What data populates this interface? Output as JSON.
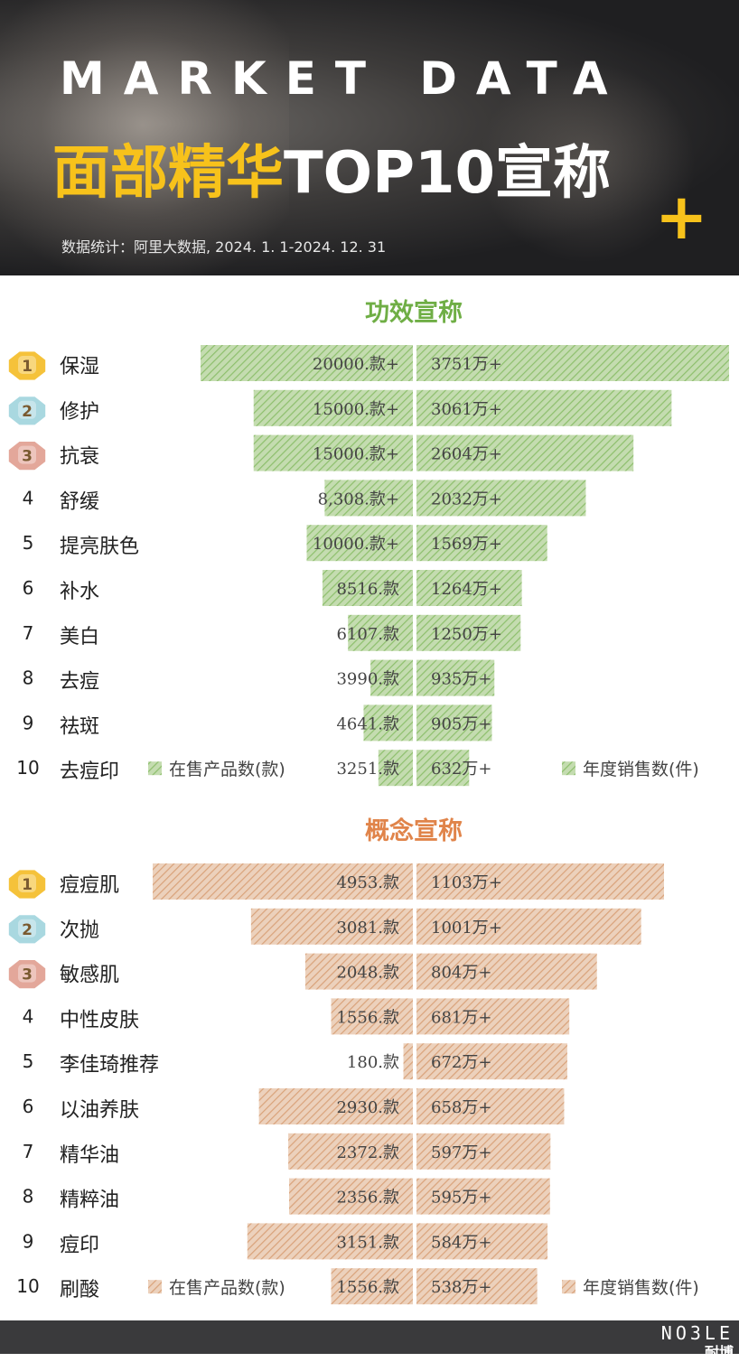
{
  "header": {
    "eyebrow": "MARKET DATA",
    "title_highlight": "面部精华",
    "title_rest": "TOP10宣称",
    "subtitle": "数据统计：阿里大数据, 2024. 1. 1-2024. 12. 31",
    "plus": "+"
  },
  "footer": {
    "logo": "NO3LE",
    "logo_cn": "耐博"
  },
  "colors": {
    "green": "#8dbf6c",
    "green_light": "#c4dcb0",
    "orange": "#d9a27a",
    "orange_light": "#ecd1bc",
    "gold_medal": "#f5c23a",
    "silver_medal": "#a9d8e0",
    "bronze_medal": "#e3a79a",
    "header_highlight": "#f7c21b"
  },
  "chart_data": [
    {
      "type": "bar",
      "title": "功效宣称",
      "categories": [
        "保湿",
        "修护",
        "抗衰",
        "舒缓",
        "提亮肤色",
        "补水",
        "美白",
        "去痘",
        "祛斑",
        "去痘印"
      ],
      "ranks": [
        "1",
        "2",
        "3",
        "4",
        "5",
        "6",
        "7",
        "8",
        "9",
        "10"
      ],
      "series": [
        {
          "name": "在售产品数(款)",
          "values": [
            20000,
            15000,
            15000,
            8308,
            10000,
            8516,
            6107,
            3990,
            4641,
            3251
          ],
          "labels": [
            "20000.款+",
            "15000.款+",
            "15000.款+",
            "8,308.款+",
            "10000.款+",
            "8516.款",
            "6107.款",
            "3990.款",
            "4641.款",
            "3251.款"
          ]
        },
        {
          "name": "年度销售数(件)",
          "values": [
            3751,
            3061,
            2604,
            2032,
            1569,
            1264,
            1250,
            935,
            905,
            632
          ],
          "labels": [
            "3751万+",
            "3061万+",
            "2604万+",
            "2032万+",
            "1569万+",
            "1264万+",
            "1250万+",
            "935万+",
            "905万+",
            "632万+"
          ]
        }
      ],
      "legend": "bottom"
    },
    {
      "type": "bar",
      "title": "概念宣称",
      "categories": [
        "痘痘肌",
        "次抛",
        "敏感肌",
        "中性皮肤",
        "李佳琦推荐",
        "以油养肤",
        "精华油",
        "精粹油",
        "痘印",
        "刷酸"
      ],
      "ranks": [
        "1",
        "2",
        "3",
        "4",
        "5",
        "6",
        "7",
        "8",
        "9",
        "10"
      ],
      "series": [
        {
          "name": "在售产品数(款)",
          "values": [
            4953,
            3081,
            2048,
            1556,
            180,
            2930,
            2372,
            2356,
            3151,
            1556
          ],
          "labels": [
            "4953.款",
            "3081.款",
            "2048.款",
            "1556.款",
            "180.款",
            "2930.款",
            "2372.款",
            "2356.款",
            "3151.款",
            "1556.款"
          ]
        },
        {
          "name": "年度销售数(件)",
          "values": [
            1103,
            1001,
            804,
            681,
            672,
            658,
            597,
            595,
            584,
            538
          ],
          "labels": [
            "1103万+",
            "1001万+",
            "804万+",
            "681万+",
            "672万+",
            "658万+",
            "597万+",
            "595万+",
            "584万+",
            "538万+"
          ]
        }
      ],
      "legend": "bottom"
    }
  ]
}
